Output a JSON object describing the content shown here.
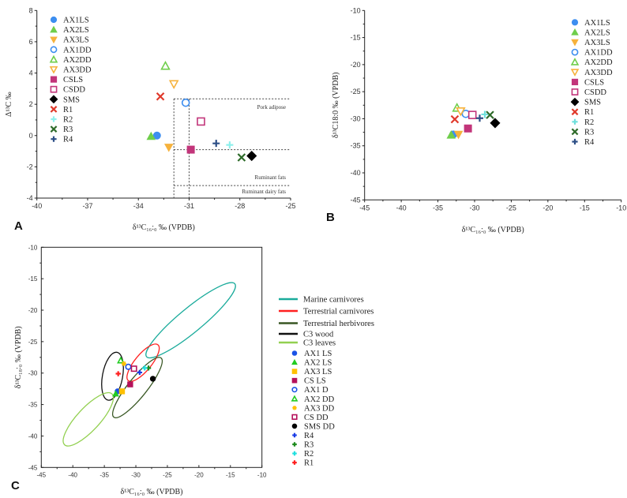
{
  "chart_data": [
    {
      "panel": "A",
      "type": "scatter",
      "xlabel": "δ¹³C₁₆:₀ ‰ (VPDB)",
      "ylabel": "Δ¹³C ‰",
      "xlim": [
        -40,
        -25
      ],
      "ylim": [
        -4,
        8
      ],
      "xticks": [
        -40,
        -37,
        -34,
        -31,
        -28,
        -25
      ],
      "yticks": [
        -4,
        -2,
        0,
        2,
        4,
        6,
        8
      ],
      "legend": "top-left",
      "series": [
        {
          "name": "AX1LS",
          "marker": "circle",
          "filled": true,
          "color": "#3d8ef0",
          "x": -32.9,
          "y": 0.0
        },
        {
          "name": "AX2LS",
          "marker": "triangle",
          "filled": true,
          "color": "#6fce4b",
          "x": -33.25,
          "y": -0.05
        },
        {
          "name": "AX3LS",
          "marker": "triangle-down",
          "filled": true,
          "color": "#f6b23c",
          "x": -32.2,
          "y": -0.75
        },
        {
          "name": "AX1DD",
          "marker": "circle",
          "filled": false,
          "color": "#3d8ef0",
          "x": -31.2,
          "y": 2.1
        },
        {
          "name": "AX2DD",
          "marker": "triangle",
          "filled": false,
          "color": "#6fce4b",
          "x": -32.4,
          "y": 4.45
        },
        {
          "name": "AX3DD",
          "marker": "triangle-down",
          "filled": false,
          "color": "#f6b23c",
          "x": -31.9,
          "y": 3.3
        },
        {
          "name": "CSLS",
          "marker": "square",
          "filled": true,
          "color": "#c2357a",
          "x": -30.9,
          "y": -0.9
        },
        {
          "name": "CSDD",
          "marker": "square",
          "filled": false,
          "color": "#c2357a",
          "x": -30.3,
          "y": 0.9
        },
        {
          "name": "SMS",
          "marker": "diamond",
          "filled": true,
          "color": "#000000",
          "x": -27.3,
          "y": -1.3
        },
        {
          "name": "R1",
          "marker": "x",
          "filled": true,
          "color": "#e0392b",
          "x": -32.7,
          "y": 2.5
        },
        {
          "name": "R2",
          "marker": "plus",
          "filled": true,
          "color": "#8ff0ec",
          "x": -28.6,
          "y": -0.6
        },
        {
          "name": "R3",
          "marker": "x",
          "filled": true,
          "color": "#2e6b2a",
          "x": -27.9,
          "y": -1.4
        },
        {
          "name": "R4",
          "marker": "plus",
          "filled": true,
          "color": "#2d4f86",
          "x": -29.4,
          "y": -0.5
        }
      ],
      "regions": [
        {
          "label": "Pork adipose",
          "lines": [
            [
              [
                -31.9,
                2.35
              ],
              [
                -25,
                2.35
              ]
            ],
            [
              [
                -31.9,
                2.35
              ],
              [
                -31.9,
                -4
              ]
            ],
            [
              [
                -31,
                2.35
              ],
              [
                -31,
                -4
              ]
            ]
          ],
          "label_y": 1.8
        },
        {
          "label": "Ruminant fats",
          "lines": [
            [
              [
                -31.9,
                -0.9
              ],
              [
                -25,
                -0.9
              ]
            ]
          ],
          "label_y": -2.7
        },
        {
          "label": "Ruminant dairy fats",
          "lines": [
            [
              [
                -31.9,
                -3.2
              ],
              [
                -25,
                -3.2
              ]
            ]
          ],
          "label_y": -3.6
        }
      ]
    },
    {
      "panel": "B",
      "type": "scatter",
      "xlabel": "δ¹³C₁₆:₀ ‰ (VPDB)",
      "ylabel": "δ¹³C18:0 ‰ (VPDB)",
      "xlim": [
        -45,
        -10
      ],
      "ylim": [
        -45,
        -10
      ],
      "xticks": [
        -45,
        -40,
        -35,
        -30,
        -25,
        -20,
        -15,
        -10
      ],
      "yticks": [
        -45,
        -40,
        -35,
        -30,
        -25,
        -20,
        -15,
        -10
      ],
      "legend": "top-right",
      "series": [
        {
          "name": "AX1LS",
          "marker": "circle",
          "filled": true,
          "color": "#3d8ef0",
          "x": -32.9,
          "y": -32.9
        },
        {
          "name": "AX2LS",
          "marker": "triangle",
          "filled": true,
          "color": "#6fce4b",
          "x": -33.2,
          "y": -33.0
        },
        {
          "name": "AX3LS",
          "marker": "triangle-down",
          "filled": true,
          "color": "#f6b23c",
          "x": -32.2,
          "y": -32.9
        },
        {
          "name": "AX1DD",
          "marker": "circle",
          "filled": false,
          "color": "#3d8ef0",
          "x": -31.2,
          "y": -29.1
        },
        {
          "name": "AX2DD",
          "marker": "triangle",
          "filled": false,
          "color": "#6fce4b",
          "x": -32.4,
          "y": -28.0
        },
        {
          "name": "AX3DD",
          "marker": "triangle-down",
          "filled": false,
          "color": "#f6b23c",
          "x": -31.9,
          "y": -28.6
        },
        {
          "name": "CSLS",
          "marker": "square",
          "filled": true,
          "color": "#c2357a",
          "x": -30.9,
          "y": -31.8
        },
        {
          "name": "CSDD",
          "marker": "square",
          "filled": false,
          "color": "#c2357a",
          "x": -30.3,
          "y": -29.3
        },
        {
          "name": "SMS",
          "marker": "diamond",
          "filled": true,
          "color": "#000000",
          "x": -27.2,
          "y": -30.8
        },
        {
          "name": "R1",
          "marker": "x",
          "filled": true,
          "color": "#e0392b",
          "x": -32.7,
          "y": -30.1
        },
        {
          "name": "R2",
          "marker": "plus",
          "filled": true,
          "color": "#6fe0dc",
          "x": -28.6,
          "y": -29.2
        },
        {
          "name": "R3",
          "marker": "x",
          "filled": true,
          "color": "#2e6b2a",
          "x": -27.9,
          "y": -29.3
        },
        {
          "name": "R4",
          "marker": "plus",
          "filled": true,
          "color": "#2d4f86",
          "x": -29.3,
          "y": -29.9
        }
      ]
    },
    {
      "panel": "C",
      "type": "scatter",
      "xlabel": "δ¹³C₁₆:₀ ‰ (VPDB)",
      "ylabel": "δ¹³C₁₈:₀ ‰ (VPDB)",
      "xlim": [
        -45,
        -10
      ],
      "ylim": [
        -45,
        -10
      ],
      "xticks": [
        -45,
        -40,
        -35,
        -30,
        -25,
        -20,
        -15,
        -10
      ],
      "yticks": [
        -45,
        -40,
        -35,
        -30,
        -25,
        -20,
        -15,
        -10
      ],
      "legend": "right",
      "ellipses": [
        {
          "name": "Marine carnivores",
          "color": "#1aab9b",
          "axis_start": [
            -28.3,
            -27.4
          ],
          "axis_end": [
            -14.3,
            -15.8
          ],
          "half_width": 1.9
        },
        {
          "name": "Terrestrial carnivores",
          "color": "#ff2020",
          "axis_start": [
            -31.2,
            -31.2
          ],
          "axis_end": [
            -26.5,
            -25.5
          ],
          "half_width": 1.3
        },
        {
          "name": "Terrestrial herbivores",
          "color": "#385723",
          "axis_start": [
            -33.5,
            -37.0
          ],
          "axis_end": [
            -26.0,
            -27.6
          ],
          "half_width": 1.5
        },
        {
          "name": "C3 wood",
          "color": "#111111",
          "axis_start": [
            -34.4,
            -34.3
          ],
          "axis_end": [
            -33.0,
            -26.7
          ],
          "half_width": 1.6
        },
        {
          "name": "C3 leaves",
          "color": "#92d050",
          "axis_start": [
            -41.3,
            -41.4
          ],
          "axis_end": [
            -33.8,
            -33.3
          ],
          "half_width": 1.8
        }
      ],
      "series": [
        {
          "name": "AX1 LS",
          "marker": "circle",
          "filled": true,
          "color": "#1a53e6",
          "x": -32.9,
          "y": -32.9
        },
        {
          "name": "AX2 LS",
          "marker": "triangle",
          "filled": true,
          "color": "#22cc22",
          "x": -33.2,
          "y": -33.3
        },
        {
          "name": "AX3 LS",
          "marker": "square",
          "filled": true,
          "color": "#ffc000",
          "x": -32.2,
          "y": -32.9
        },
        {
          "name": "CS LS",
          "marker": "square",
          "filled": true,
          "color": "#b5115a",
          "x": -30.9,
          "y": -31.8
        },
        {
          "name": "AX1 D",
          "marker": "circle",
          "filled": false,
          "color": "#1a53e6",
          "x": -31.2,
          "y": -29.0
        },
        {
          "name": "AX2 DD",
          "marker": "triangle",
          "filled": false,
          "color": "#22cc22",
          "x": -32.4,
          "y": -28.0
        },
        {
          "name": "AX3 DD",
          "marker": "star",
          "filled": true,
          "color": "#ffc000",
          "x": -31.9,
          "y": -28.5
        },
        {
          "name": "CS DD",
          "marker": "square",
          "filled": false,
          "color": "#b5115a",
          "x": -30.3,
          "y": -29.3
        },
        {
          "name": "SMS DD",
          "marker": "circle",
          "filled": true,
          "color": "#000000",
          "x": -27.3,
          "y": -30.9
        },
        {
          "name": "R4",
          "marker": "plus",
          "filled": true,
          "color": "#1a3ce6",
          "x": -29.4,
          "y": -29.9
        },
        {
          "name": "R3",
          "marker": "plus",
          "filled": true,
          "color": "#1e8a1e",
          "x": -28.0,
          "y": -29.2
        },
        {
          "name": "R2",
          "marker": "plus",
          "filled": true,
          "color": "#22e0e0",
          "x": -28.6,
          "y": -29.2
        },
        {
          "name": "R1",
          "marker": "plus",
          "filled": true,
          "color": "#ff2020",
          "x": -32.8,
          "y": -30.1
        }
      ]
    }
  ]
}
